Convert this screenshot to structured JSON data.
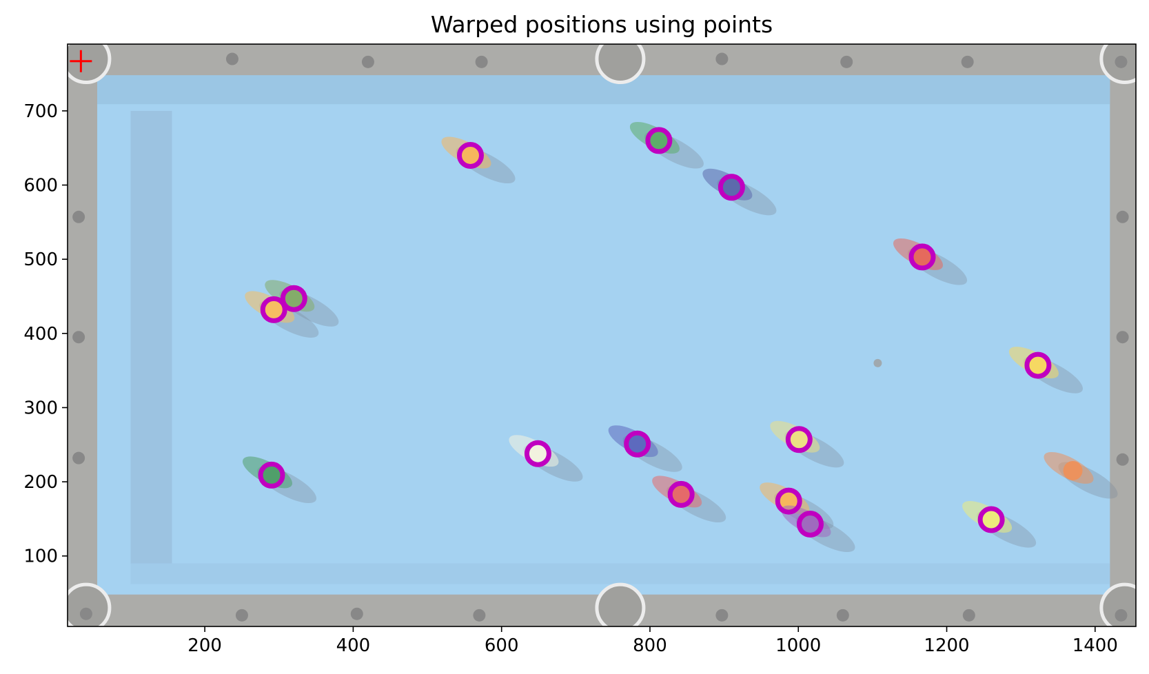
{
  "chart_data": {
    "type": "scatter",
    "title": "Warped positions using points",
    "xlabel": "",
    "ylabel": "",
    "xlim": [
      15,
      1455
    ],
    "ylim": [
      5,
      790
    ],
    "x_ticks": [
      200,
      400,
      600,
      800,
      1000,
      1200,
      1400
    ],
    "y_ticks": [
      100,
      200,
      300,
      400,
      500,
      600,
      700
    ],
    "grid": false,
    "legend": "none",
    "background_image": "pool-table-top-view",
    "colors": {
      "marker": "#c000c0",
      "origin_marker": "#ff0000",
      "felt": "#92c8ee",
      "rail": "#9a9a96",
      "diamond": "#6e6e6e"
    },
    "origin_marker": {
      "x": 33,
      "y": 767,
      "symbol": "plus"
    },
    "series": [
      {
        "marker": "ring",
        "x": [
          558,
          812,
          910,
          1167,
          320,
          293,
          1323,
          1001,
          783,
          649,
          290,
          842,
          987,
          1016,
          1260
        ],
        "y": [
          640,
          660,
          597,
          503,
          447,
          432,
          357,
          257,
          251,
          238,
          209,
          183,
          174,
          143,
          149
        ]
      }
    ],
    "balls": [
      {
        "x": 558,
        "y": 640,
        "color": "#f4a63a"
      },
      {
        "x": 812,
        "y": 660,
        "color": "#3a9a4a"
      },
      {
        "x": 910,
        "y": 597,
        "color": "#3a4a9a"
      },
      {
        "x": 1167,
        "y": 503,
        "color": "#e04a3a"
      },
      {
        "x": 320,
        "y": 447,
        "color": "#6a9a4a"
      },
      {
        "x": 293,
        "y": 432,
        "color": "#f4b040"
      },
      {
        "x": 1323,
        "y": 357,
        "color": "#f4d040"
      },
      {
        "x": 1001,
        "y": 257,
        "color": "#e8d86a"
      },
      {
        "x": 783,
        "y": 251,
        "color": "#3a4ab0"
      },
      {
        "x": 649,
        "y": 238,
        "color": "#f0f0d8"
      },
      {
        "x": 290,
        "y": 209,
        "color": "#2a8a4a"
      },
      {
        "x": 842,
        "y": 183,
        "color": "#e04a4a"
      },
      {
        "x": 987,
        "y": 174,
        "color": "#f4a63a"
      },
      {
        "x": 1016,
        "y": 143,
        "color": "#8a4ab0"
      },
      {
        "x": 1260,
        "y": 149,
        "color": "#e8e860"
      },
      {
        "x": 1370,
        "y": 215,
        "color": "#e87a3a"
      }
    ]
  }
}
